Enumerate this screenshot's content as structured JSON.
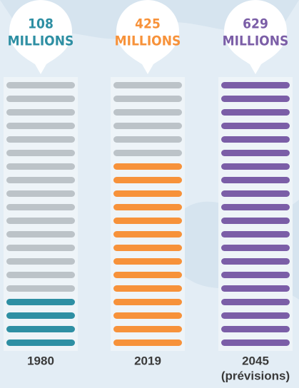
{
  "chart_data": {
    "type": "pictograph",
    "categories": [
      "1980",
      "2019",
      "2045"
    ],
    "category_notes": [
      null,
      null,
      "(prévisions)"
    ],
    "values": [
      108,
      425,
      629
    ],
    "unit": "MILLIONS",
    "filled": [
      4,
      14,
      20
    ],
    "total": 20,
    "colors": [
      "#2e8fa3",
      "#f7923a",
      "#7b5ea7"
    ],
    "empty_color": "#bcc3c8"
  }
}
